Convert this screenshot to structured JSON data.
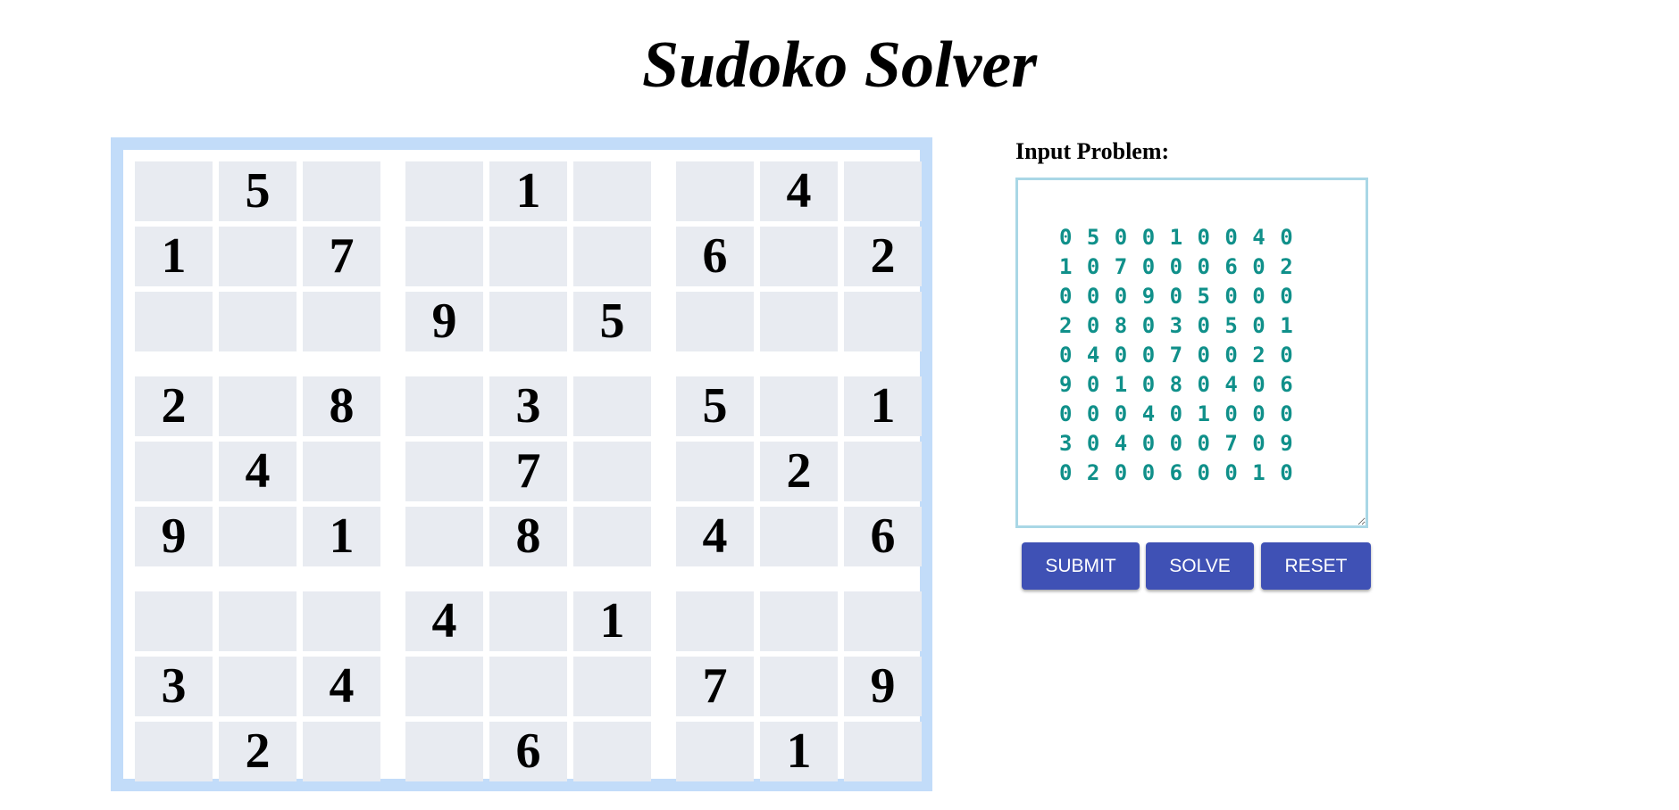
{
  "title": "Sudoko Solver",
  "board": [
    [
      "",
      "5",
      "",
      "",
      "1",
      "",
      "",
      "4",
      ""
    ],
    [
      "1",
      "",
      "7",
      "",
      "",
      "",
      "6",
      "",
      "2"
    ],
    [
      "",
      "",
      "",
      "9",
      "",
      "5",
      "",
      "",
      ""
    ],
    [
      "2",
      "",
      "8",
      "",
      "3",
      "",
      "5",
      "",
      "1"
    ],
    [
      "",
      "4",
      "",
      "",
      "7",
      "",
      "",
      "2",
      ""
    ],
    [
      "9",
      "",
      "1",
      "",
      "8",
      "",
      "4",
      "",
      "6"
    ],
    [
      "",
      "",
      "",
      "4",
      "",
      "1",
      "",
      "",
      ""
    ],
    [
      "3",
      "",
      "4",
      "",
      "",
      "",
      "7",
      "",
      "9"
    ],
    [
      "",
      "2",
      "",
      "",
      "6",
      "",
      "",
      "1",
      ""
    ]
  ],
  "panel": {
    "label": "Input Problem:",
    "problem_text": "0 5 0 0 1 0 0 4 0\n1 0 7 0 0 0 6 0 2\n0 0 0 9 0 5 0 0 0\n2 0 8 0 3 0 5 0 1\n0 4 0 0 7 0 0 2 0\n9 0 1 0 8 0 4 0 6\n0 0 0 4 0 1 0 0 0\n3 0 4 0 0 0 7 0 9\n0 2 0 0 6 0 0 1 0"
  },
  "buttons": {
    "submit": "SUBMIT",
    "solve": "SOLVE",
    "reset": "RESET"
  },
  "colors": {
    "board_border": "#c2dcf9",
    "cell_bg": "#e8ebf1",
    "input_text": "#10908a",
    "input_border": "#a9d7e6",
    "button_bg": "#3f51b5"
  }
}
